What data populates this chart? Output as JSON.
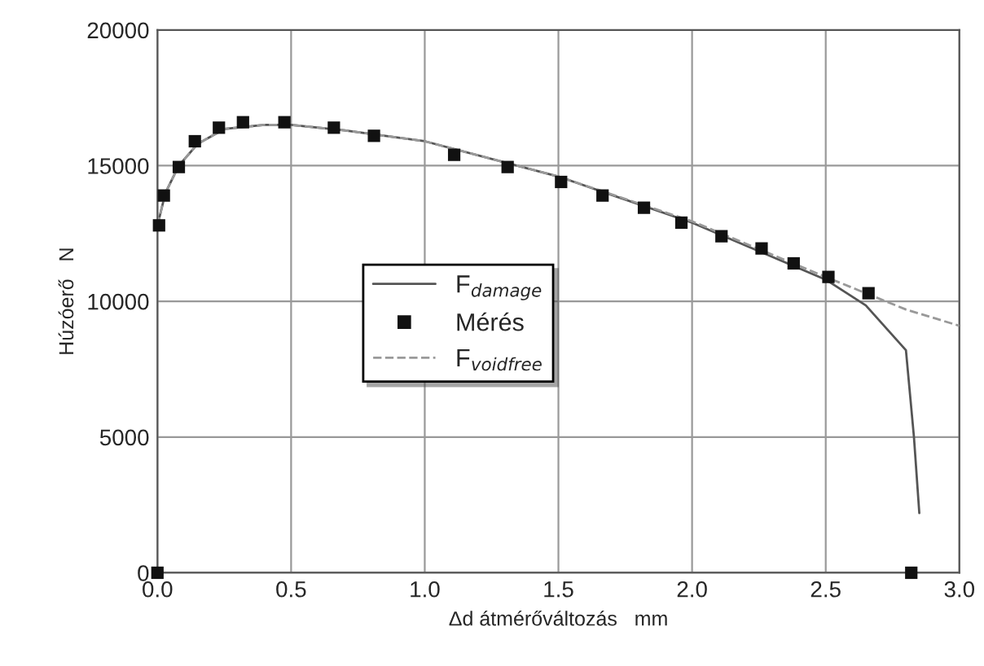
{
  "chart_data": {
    "type": "line",
    "xlabel": "Δd átmérőváltozás   mm",
    "ylabel": "Húzóerő   N",
    "xlim": [
      0,
      3
    ],
    "xticks": [
      {
        "value": 0,
        "label": "0.0"
      },
      {
        "value": 0.5,
        "label": "0.5"
      },
      {
        "value": 1,
        "label": "1.0"
      },
      {
        "value": 1.5,
        "label": "1.5"
      },
      {
        "value": 2,
        "label": "2.0"
      },
      {
        "value": 2.5,
        "label": "2.5"
      },
      {
        "value": 3,
        "label": "3.0"
      }
    ],
    "ylim": [
      0,
      20000
    ],
    "yticks": [
      0,
      5000,
      10000,
      15000,
      20000
    ],
    "grid": true,
    "legend": "center",
    "series": [
      {
        "name": "F$_{damage}$",
        "color": "#555555",
        "line_style": "solid",
        "marker": "none",
        "x": [
          0,
          0.03,
          0.08,
          0.15,
          0.25,
          0.4,
          0.5,
          0.7,
          1.0,
          1.5,
          2.0,
          2.5,
          2.65,
          2.8,
          2.83,
          2.85
        ],
        "values": [
          12800,
          14000,
          15000,
          15800,
          16350,
          16500,
          16500,
          16300,
          15900,
          14600,
          12900,
          10800,
          9850,
          8200,
          5000,
          2200
        ]
      },
      {
        "name": "Mérés",
        "type": "scatter",
        "color": "#111111",
        "marker": "square",
        "x": [
          0,
          0.006,
          0.024,
          0.08,
          0.14,
          0.23,
          0.32,
          0.475,
          0.66,
          0.81,
          1.11,
          1.31,
          1.51,
          1.665,
          1.82,
          1.96,
          2.11,
          2.26,
          2.38,
          2.51,
          2.66,
          2.82
        ],
        "values": [
          0,
          12800,
          13900,
          14950,
          15900,
          16400,
          16600,
          16600,
          16400,
          16100,
          15400,
          14950,
          14400,
          13900,
          13450,
          12900,
          12400,
          11950,
          11400,
          10900,
          10300,
          0
        ]
      },
      {
        "name": "F$_{voidfree}$",
        "color": "#999999",
        "line_style": "dashed",
        "marker": "none",
        "x": [
          0,
          0.03,
          0.08,
          0.15,
          0.25,
          0.4,
          0.5,
          0.7,
          1.0,
          1.5,
          2.0,
          2.5,
          2.8,
          3.0
        ],
        "values": [
          12800,
          14000,
          15000,
          15800,
          16350,
          16500,
          16500,
          16300,
          15900,
          14600,
          12950,
          10900,
          9700,
          9100
        ]
      }
    ]
  }
}
